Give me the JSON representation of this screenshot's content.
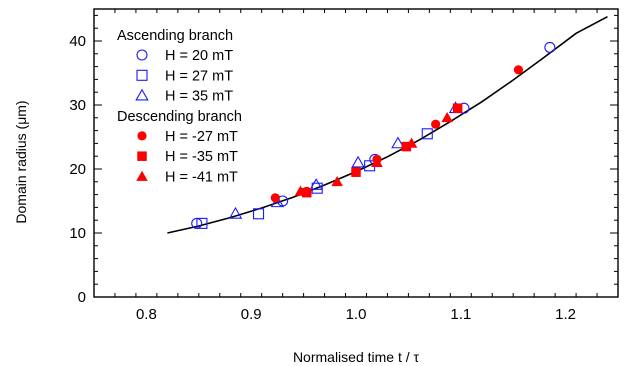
{
  "chart_data": {
    "type": "scatter",
    "title": "",
    "xlabel": "Normalised time t / τ",
    "ylabel": "Domain radius (μm)",
    "xlim": [
      0.75,
      1.25
    ],
    "ylim": [
      0,
      45
    ],
    "xticks": [
      0.8,
      0.9,
      1.0,
      1.1,
      1.2
    ],
    "yticks": [
      0,
      10,
      20,
      30,
      40
    ],
    "xtick_labels": [
      "0.8",
      "0.9",
      "1.0",
      "1.1",
      "1.2"
    ],
    "ytick_labels": [
      "0",
      "10",
      "20",
      "30",
      "40"
    ],
    "grid": false,
    "legend_position": "top-left",
    "legend_groups": [
      {
        "heading": "Ascending branch",
        "series_indices": [
          0,
          1,
          2
        ]
      },
      {
        "heading": "Descending branch",
        "series_indices": [
          3,
          4,
          5
        ]
      }
    ],
    "series": [
      {
        "name": "H = 20 mT",
        "marker": "circle",
        "filled": false,
        "color": "#1a1aff",
        "x": [
          0.848,
          0.93,
          1.018,
          1.103,
          1.185
        ],
        "y": [
          11.5,
          15.0,
          21.5,
          29.5,
          39.0
        ]
      },
      {
        "name": "H = 27 mT",
        "marker": "square",
        "filled": false,
        "color": "#1a1aff",
        "x": [
          0.853,
          0.907,
          0.963,
          1.013,
          1.068
        ],
        "y": [
          11.5,
          13.0,
          17.0,
          20.5,
          25.5
        ]
      },
      {
        "name": "H = 35 mT",
        "marker": "triangle",
        "filled": false,
        "color": "#1a1aff",
        "x": [
          0.885,
          0.925,
          0.962,
          1.002,
          1.04,
          1.095
        ],
        "y": [
          13.0,
          14.8,
          17.5,
          21.0,
          24.0,
          29.5
        ]
      },
      {
        "name": "H = -27 mT",
        "marker": "circle",
        "filled": true,
        "color": "#ff0000",
        "x": [
          0.923,
          0.953,
          1.02,
          1.076,
          1.155
        ],
        "y": [
          15.5,
          16.5,
          21.5,
          27.0,
          35.5
        ]
      },
      {
        "name": "H = -35 mT",
        "marker": "square",
        "filled": true,
        "color": "#ff0000",
        "x": [
          0.953,
          1.0,
          1.048,
          1.097
        ],
        "y": [
          16.3,
          19.5,
          23.5,
          29.5
        ]
      },
      {
        "name": "H = -41 mT",
        "marker": "triangle",
        "filled": true,
        "color": "#ff0000",
        "x": [
          0.947,
          0.982,
          1.02,
          1.053,
          1.087
        ],
        "y": [
          16.5,
          18.0,
          21.0,
          24.0,
          28.0
        ]
      }
    ],
    "fit_curve": {
      "style": "solid",
      "color": "#000000",
      "x": [
        0.82,
        0.85,
        0.88,
        0.91,
        0.94,
        0.97,
        1.0,
        1.03,
        1.06,
        1.09,
        1.12,
        1.15,
        1.18,
        1.21,
        1.24
      ],
      "y": [
        10.0,
        11.1,
        12.4,
        13.9,
        15.6,
        17.5,
        19.6,
        21.9,
        24.5,
        27.4,
        30.5,
        33.9,
        37.5,
        41.2,
        43.8
      ]
    }
  }
}
